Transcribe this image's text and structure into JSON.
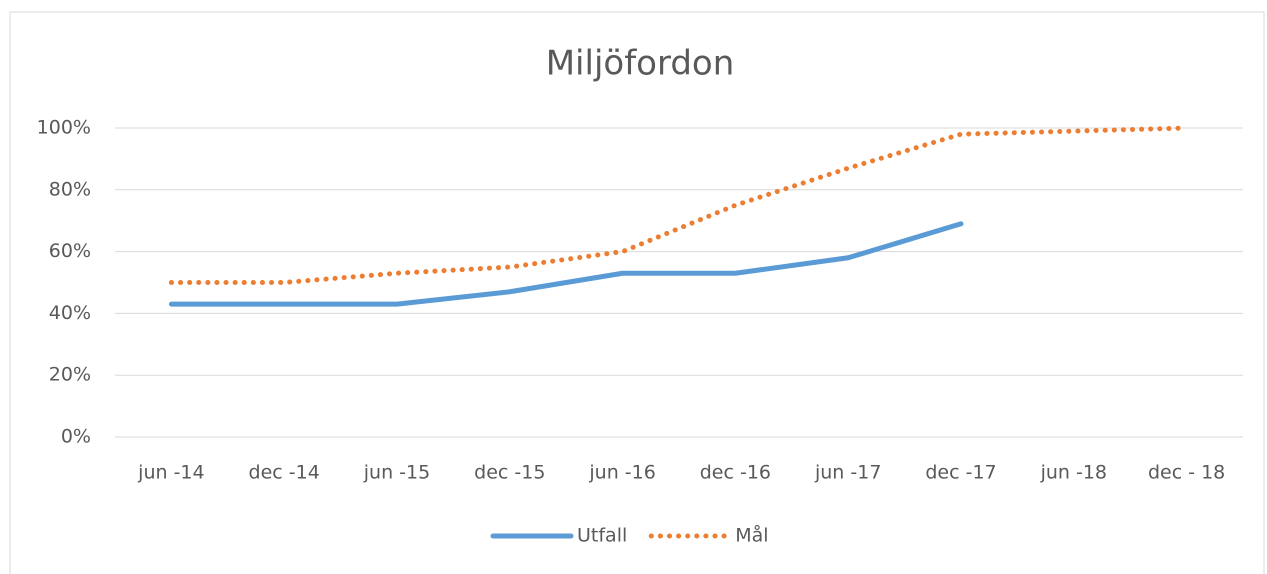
{
  "chart_data": {
    "type": "line",
    "title": "Miljöfordon",
    "categories": [
      "jun -14",
      "dec -14",
      "jun -15",
      "dec -15",
      "jun -16",
      "dec -16",
      "jun -17",
      "dec -17",
      "jun -18",
      "dec - 18"
    ],
    "series": [
      {
        "name": "Utfall",
        "color": "#5b9bd5",
        "style": "solid",
        "values": [
          43,
          43,
          43,
          47,
          53,
          53,
          58,
          69,
          null,
          null
        ]
      },
      {
        "name": "Mål",
        "color": "#ed7d31",
        "style": "dotted",
        "values": [
          50,
          50,
          53,
          55,
          60,
          75,
          87,
          98,
          99,
          100
        ]
      }
    ],
    "ylim": [
      0,
      100
    ],
    "yticks": [
      {
        "value": 0,
        "label": "0%"
      },
      {
        "value": 20,
        "label": "20%"
      },
      {
        "value": 40,
        "label": "40%"
      },
      {
        "value": 60,
        "label": "60%"
      },
      {
        "value": 80,
        "label": "80%"
      },
      {
        "value": 100,
        "label": "100%"
      }
    ],
    "grid": true,
    "legend": "bottom"
  }
}
